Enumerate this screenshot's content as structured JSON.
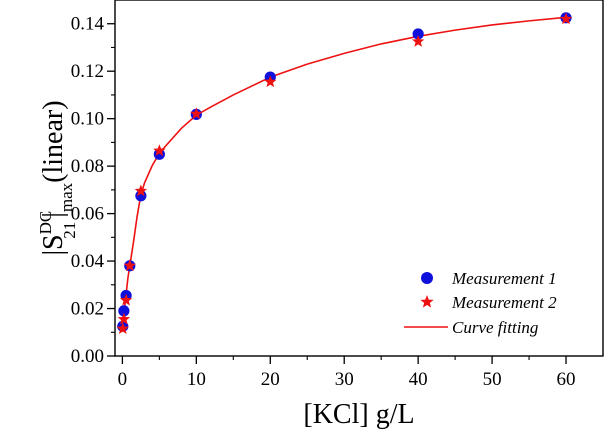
{
  "chart_data": {
    "type": "scatter",
    "xlabel": "[KCl] g/L",
    "ylabel": {
      "prefix": "|S",
      "sup": "DC",
      "sub": "21",
      "mid": "|",
      "sub2": "max",
      "suffix": "(linear)"
    },
    "xlim": [
      -1,
      65
    ],
    "ylim": [
      0.0,
      0.15
    ],
    "x_ticks": [
      0,
      10,
      20,
      30,
      40,
      50,
      60
    ],
    "y_ticks": [
      0.0,
      0.02,
      0.04,
      0.06,
      0.08,
      0.1,
      0.12,
      0.14
    ],
    "x_tick_labels": [
      "0",
      "10",
      "20",
      "30",
      "40",
      "50",
      "60"
    ],
    "y_tick_labels": [
      "0.00",
      "0.02",
      "0.04",
      "0.06",
      "0.08",
      "0.10",
      "0.12",
      "0.14"
    ],
    "grid": false,
    "legend_position": "bottom-right",
    "series": [
      {
        "name": "Measurement 1",
        "marker": "circle",
        "color": "#1010dd",
        "x": [
          0.05,
          0.2,
          0.5,
          1,
          2.5,
          5,
          10,
          20,
          40,
          60
        ],
        "y": [
          0.0125,
          0.019,
          0.0255,
          0.038,
          0.0675,
          0.085,
          0.1018,
          0.1175,
          0.1357,
          0.1425
        ]
      },
      {
        "name": "Measurement 2",
        "marker": "star",
        "color": "#ee1111",
        "x": [
          0.05,
          0.2,
          0.5,
          1,
          2.5,
          5,
          10,
          20,
          40,
          60
        ],
        "y": [
          0.0115,
          0.0155,
          0.0235,
          0.038,
          0.0695,
          0.0865,
          0.102,
          0.1155,
          0.1325,
          0.142
        ]
      },
      {
        "name": "Curve fitting",
        "marker": "line",
        "color": "#ee1111",
        "x": [
          0,
          0.25,
          0.5,
          0.75,
          1,
          1.5,
          2,
          2.5,
          3,
          4,
          5,
          6,
          8,
          10,
          12,
          15,
          20,
          25,
          30,
          35,
          40,
          45,
          50,
          55,
          60
        ],
        "y": [
          0.011,
          0.019,
          0.026,
          0.033,
          0.038,
          0.048,
          0.059,
          0.068,
          0.073,
          0.08,
          0.0855,
          0.089,
          0.096,
          0.1015,
          0.105,
          0.11,
          0.1175,
          0.123,
          0.1275,
          0.1315,
          0.1347,
          0.1373,
          0.1395,
          0.1412,
          0.1427
        ]
      }
    ]
  }
}
